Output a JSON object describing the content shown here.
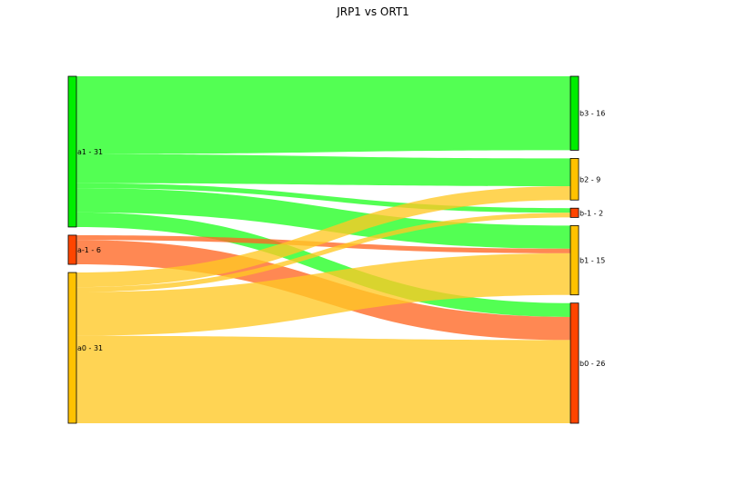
{
  "chart_data": {
    "type": "sankey",
    "title": "JRP1 vs ORT1",
    "colors": {
      "green": "#00ee00",
      "red": "#ff4500",
      "yellow": "#ffc200",
      "flow_green": "#22ff22",
      "flow_red": "#ff6622",
      "flow_yellow": "#ffc824"
    },
    "left_nodes": [
      {
        "id": "a1",
        "label": "a1 - 31",
        "value": 31,
        "color": "green"
      },
      {
        "id": "a-1",
        "label": "a-1 - 6",
        "value": 6,
        "color": "red"
      },
      {
        "id": "a0",
        "label": "a0 - 31",
        "value": 31,
        "color": "yellow"
      }
    ],
    "right_nodes": [
      {
        "id": "b3",
        "label": "b3 - 16",
        "value": 16,
        "color": "green"
      },
      {
        "id": "b2",
        "label": "b2 - 9",
        "value": 9,
        "color": "yellow"
      },
      {
        "id": "b-1",
        "label": "b-1 - 2",
        "value": 2,
        "color": "red"
      },
      {
        "id": "b1",
        "label": "b1 - 15",
        "value": 15,
        "color": "yellow"
      },
      {
        "id": "b0",
        "label": "b0 - 26",
        "value": 26,
        "color": "red"
      }
    ],
    "flows": [
      {
        "source": "a1",
        "target": "b3",
        "value": 16
      },
      {
        "source": "a1",
        "target": "b2",
        "value": 6
      },
      {
        "source": "a1",
        "target": "b-1",
        "value": 1
      },
      {
        "source": "a1",
        "target": "b1",
        "value": 5
      },
      {
        "source": "a1",
        "target": "b0",
        "value": 3
      },
      {
        "source": "a-1",
        "target": "b1",
        "value": 1
      },
      {
        "source": "a-1",
        "target": "b0",
        "value": 5
      },
      {
        "source": "a0",
        "target": "b2",
        "value": 3
      },
      {
        "source": "a0",
        "target": "b-1",
        "value": 1
      },
      {
        "source": "a0",
        "target": "b1",
        "value": 9
      },
      {
        "source": "a0",
        "target": "b0",
        "value": 18
      }
    ]
  }
}
